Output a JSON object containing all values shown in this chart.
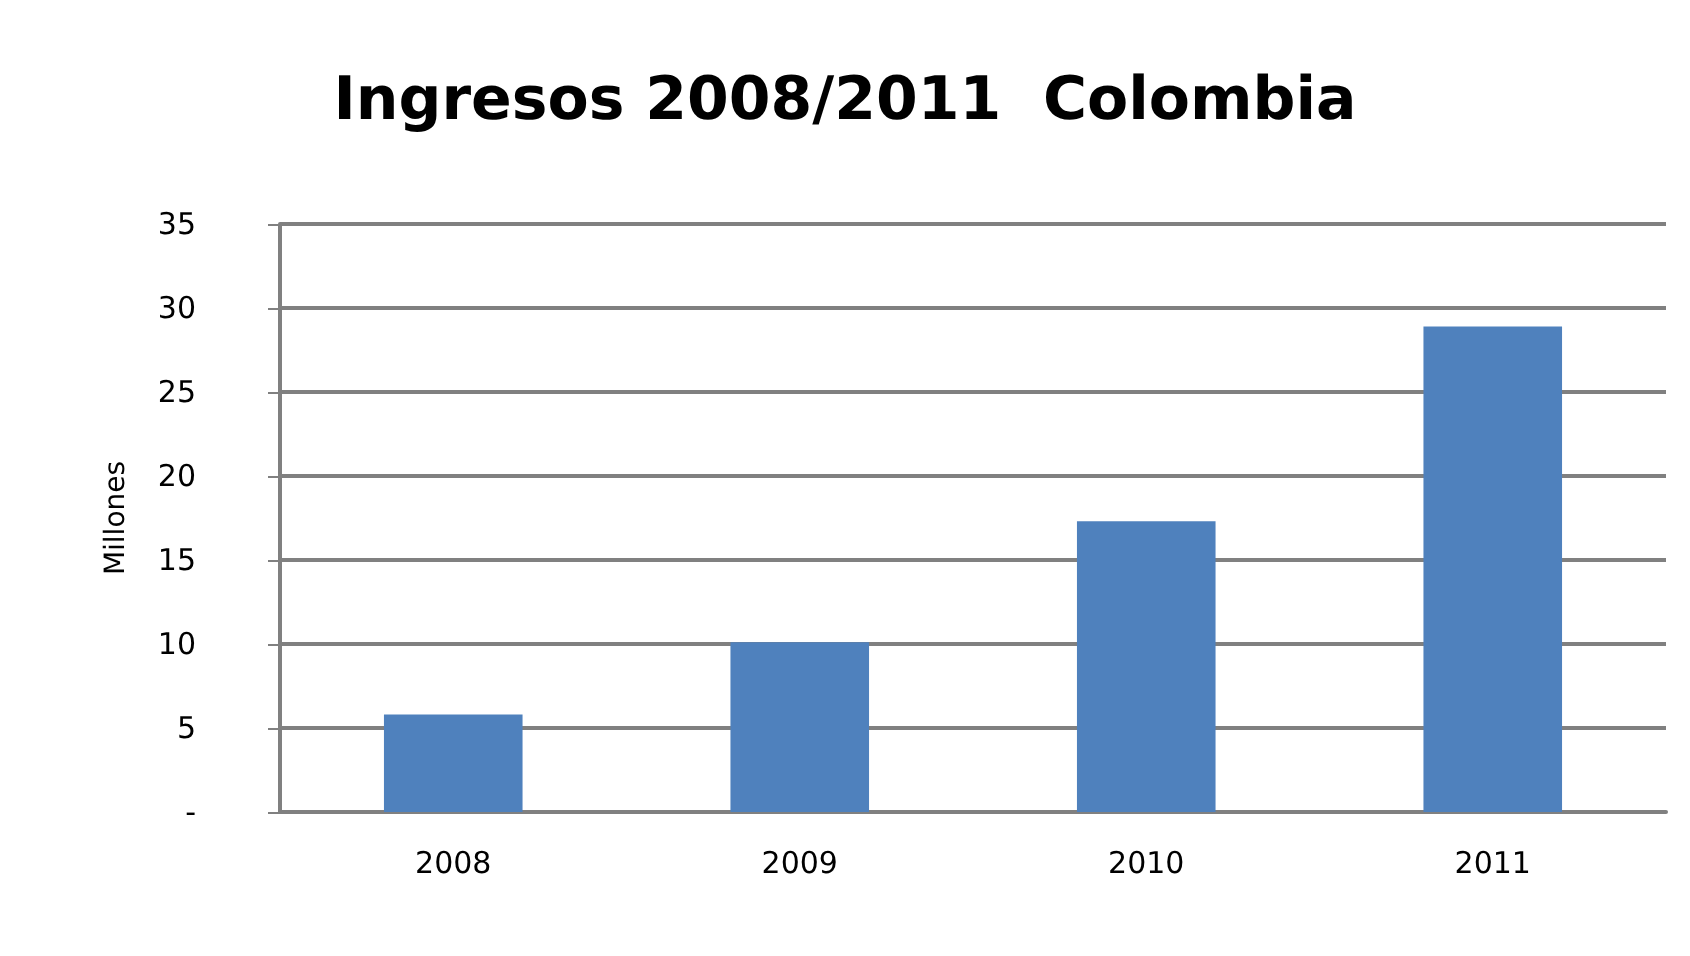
{
  "chart_data": {
    "type": "bar",
    "title": "Ingresos 2008/2011  Colombia",
    "ylabel": "Millones",
    "categories": [
      "2008",
      "2009",
      "2010",
      "2011"
    ],
    "values": [
      5.8,
      10.1,
      17.3,
      28.9
    ],
    "color": "#4f81bd",
    "ylim": [
      0,
      35
    ],
    "yticks": [
      {
        "value": 0,
        "label": "-"
      },
      5,
      10,
      15,
      20,
      25,
      30,
      35
    ],
    "grid": "y"
  }
}
